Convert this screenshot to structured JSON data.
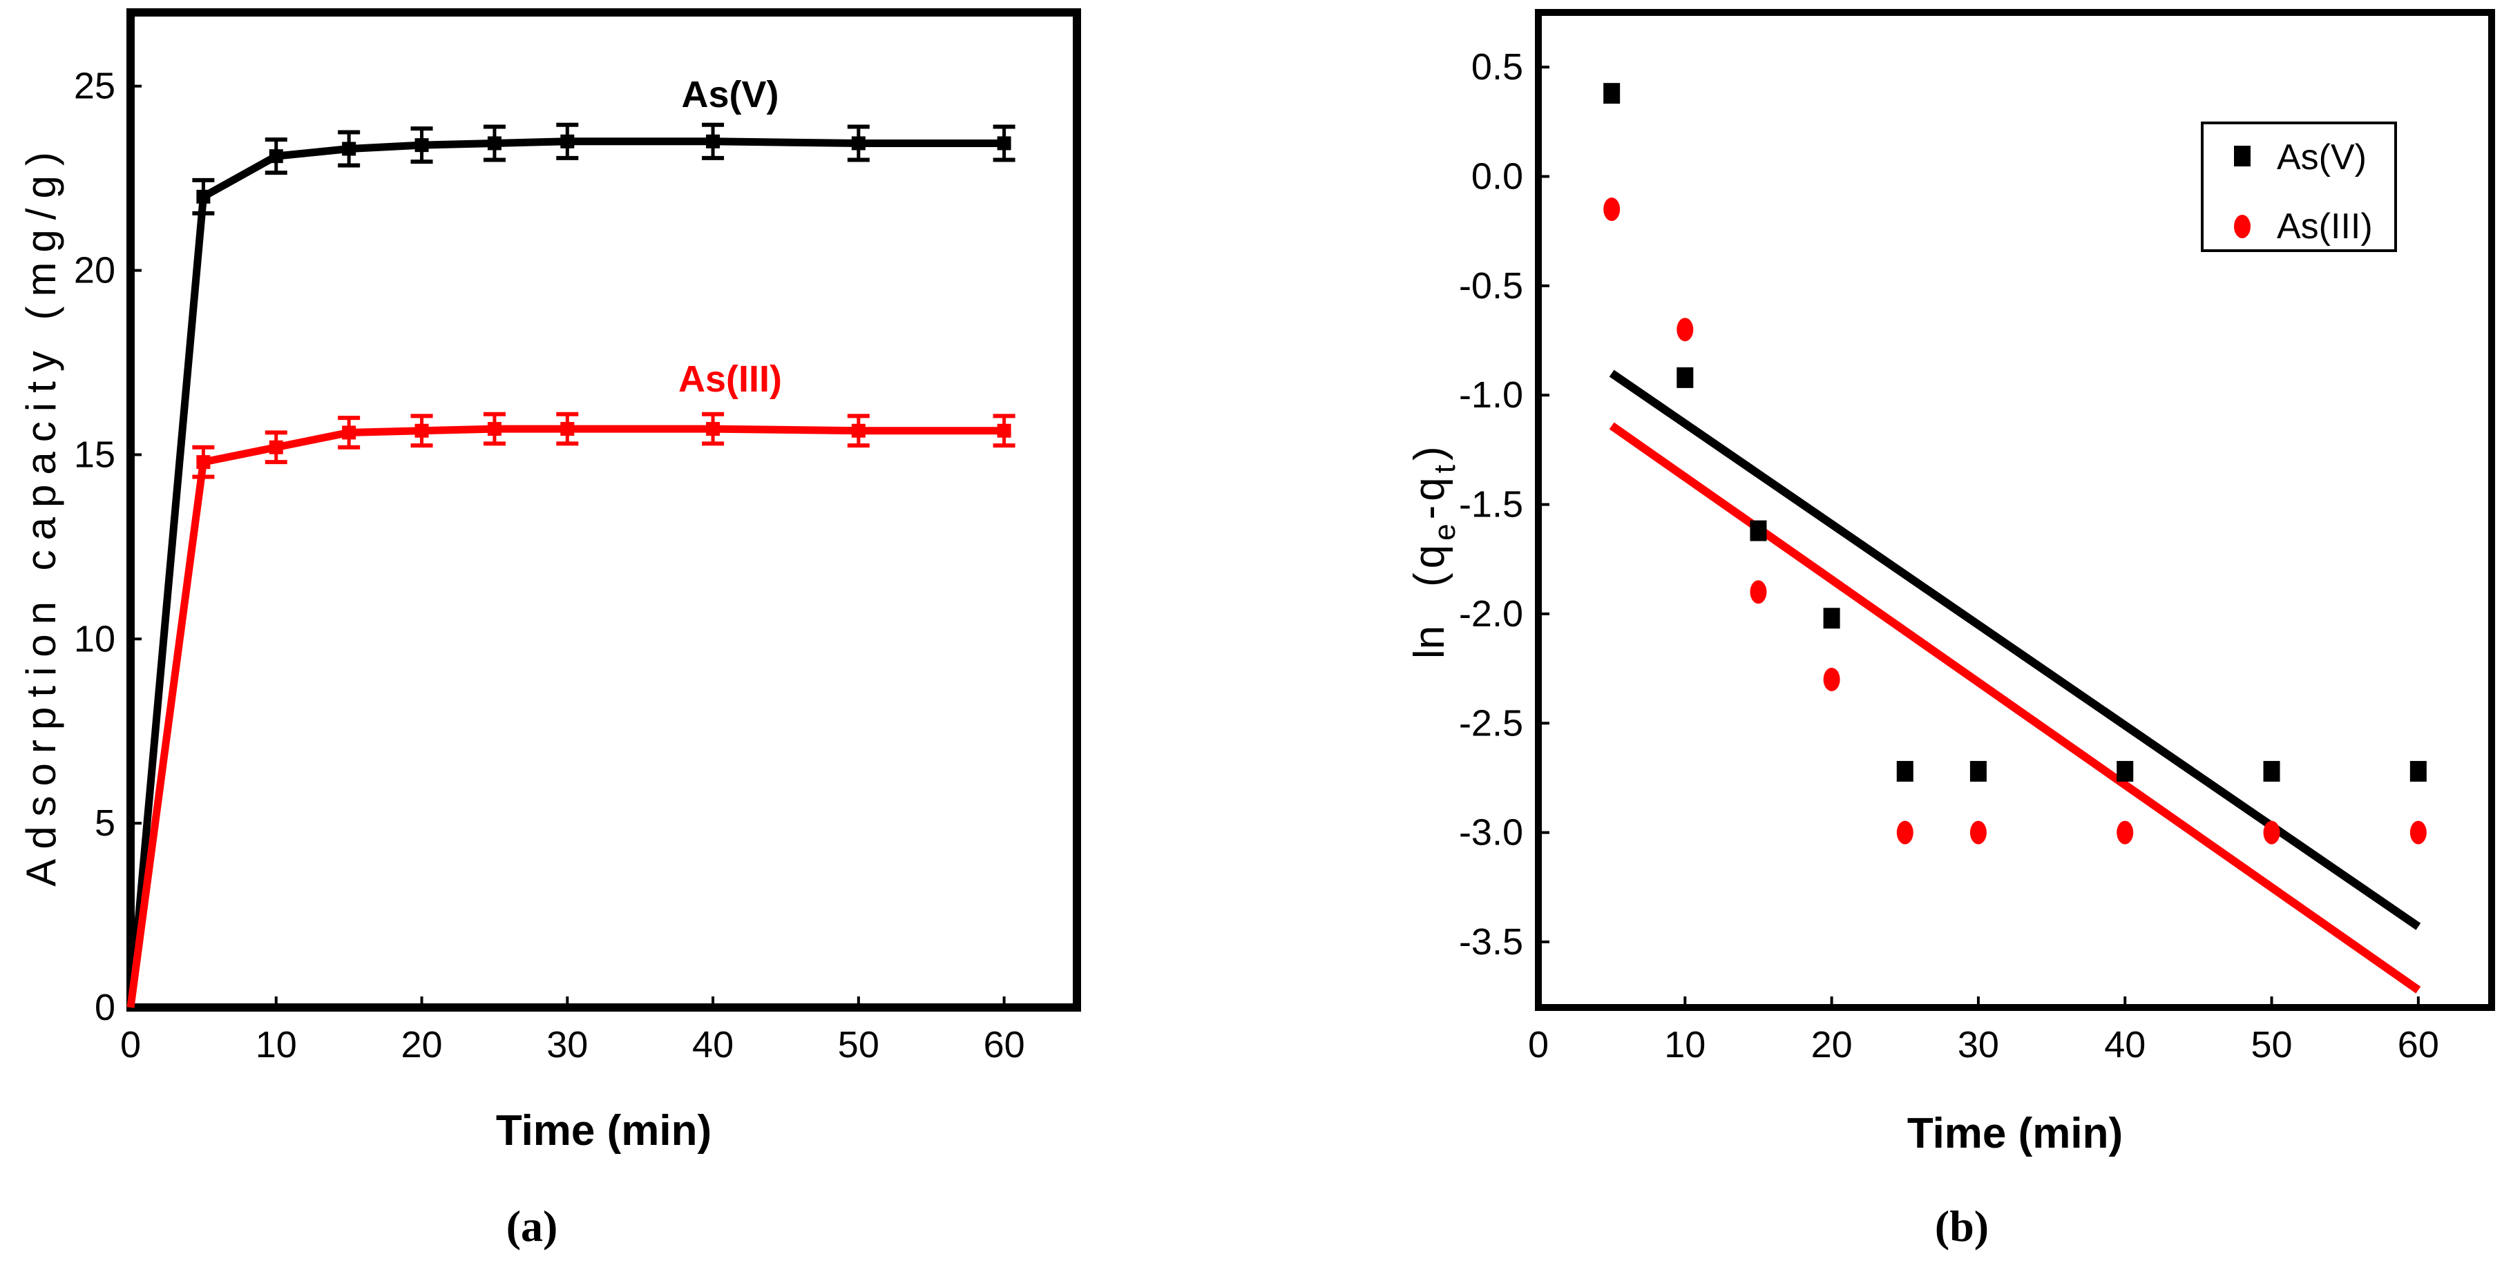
{
  "chart_data": [
    {
      "panel": "(a)",
      "type": "line",
      "xlabel": "Time (min)",
      "ylabel": "Adsorption capacity (mg/g)",
      "xlim": [
        0,
        65
      ],
      "ylim": [
        0,
        27
      ],
      "xticks": [
        0,
        10,
        20,
        30,
        40,
        50,
        60
      ],
      "yticks": [
        0,
        5,
        10,
        15,
        20,
        25
      ],
      "x": [
        0,
        5,
        10,
        15,
        20,
        25,
        30,
        40,
        50,
        60
      ],
      "series": [
        {
          "name": "As(V)",
          "color": "#000000",
          "values": [
            0,
            22.0,
            23.1,
            23.3,
            23.4,
            23.45,
            23.5,
            23.5,
            23.45,
            23.45
          ],
          "error": 0.45
        },
        {
          "name": "As(III)",
          "color": "#ff0000",
          "values": [
            0,
            14.8,
            15.2,
            15.6,
            15.65,
            15.7,
            15.7,
            15.7,
            15.65,
            15.65
          ],
          "error": 0.4
        }
      ],
      "annotations": [
        {
          "text": "As(V)",
          "color": "#000000",
          "x": 33,
          "y": 24.7
        },
        {
          "text": "As(III)",
          "color": "#ff0000",
          "x": 33,
          "y": 16.8
        }
      ]
    },
    {
      "panel": "(b)",
      "type": "scatter",
      "xlabel": "Time (min)",
      "ylabel_main": "ln",
      "ylabel_expr": "(q",
      "ylabel_sub1": "e",
      "ylabel_mid": "-q",
      "ylabel_sub2": "t",
      "ylabel_end": ")",
      "xlim": [
        0,
        65
      ],
      "ylim": [
        -3.8,
        0.75
      ],
      "xticks": [
        0,
        10,
        20,
        30,
        40,
        50,
        60
      ],
      "yticks": [
        0.5,
        0.0,
        -0.5,
        -1.0,
        -1.5,
        -2.0,
        -2.5,
        -3.0,
        -3.5
      ],
      "ytick_labels": [
        "0.5",
        "0.0",
        "-0.5",
        "-1.0",
        "-1.5",
        "-2.0",
        "-2.5",
        "-3.0",
        "-3.5"
      ],
      "legend_position": "top-right",
      "series": [
        {
          "name": "As(V)",
          "color": "#000000",
          "marker": "square",
          "x": [
            5,
            10,
            15,
            20,
            25,
            30,
            40,
            50,
            60
          ],
          "y": [
            0.38,
            -0.92,
            -1.62,
            -2.02,
            -2.72,
            -2.72,
            -2.72,
            -2.72,
            -2.72
          ],
          "fit": {
            "x": [
              5,
              60
            ],
            "y": [
              -0.9,
              -3.43
            ]
          }
        },
        {
          "name": "As(III)",
          "color": "#ff0000",
          "marker": "circle",
          "x": [
            5,
            10,
            15,
            20,
            25,
            30,
            40,
            50,
            60
          ],
          "y": [
            -0.15,
            -0.7,
            -1.9,
            -2.3,
            -3.0,
            -3.0,
            -3.0,
            -3.0,
            -3.0
          ],
          "fit": {
            "x": [
              5,
              60
            ],
            "y": [
              -1.14,
              -3.72
            ]
          }
        }
      ]
    }
  ]
}
